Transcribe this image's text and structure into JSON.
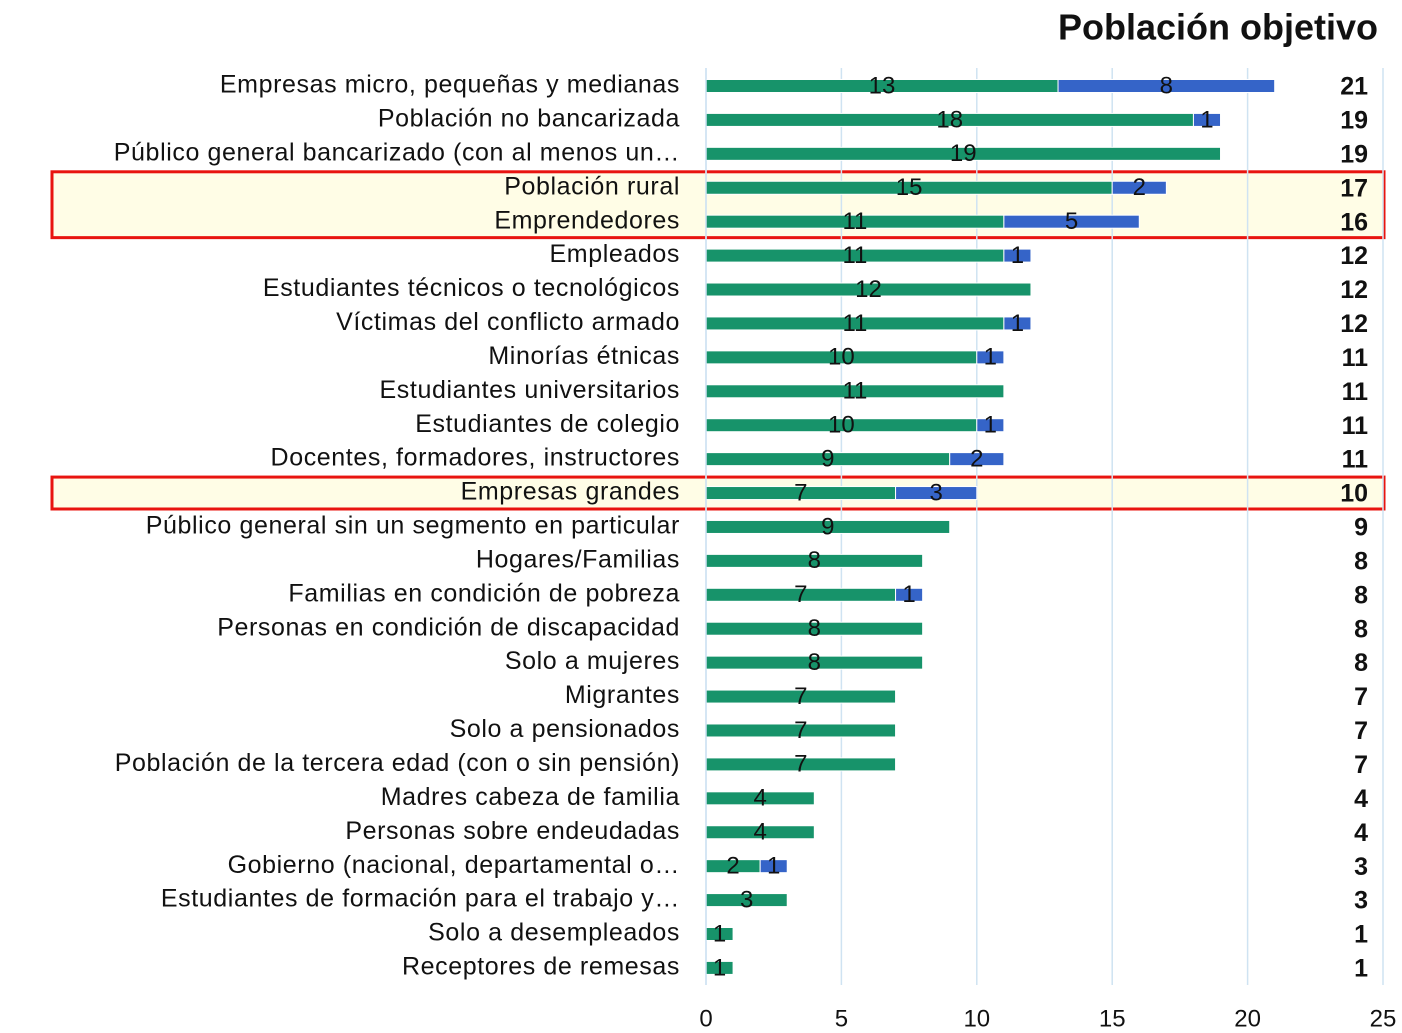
{
  "chart_data": {
    "type": "stacked-bar-horizontal",
    "title": "Población objetivo",
    "categories": [
      "Empresas micro, pequeñas y medianas",
      "Población no bancarizada",
      "Público general bancarizado (con al menos un…",
      "Población rural",
      "Emprendedores",
      "Empleados",
      "Estudiantes técnicos o tecnológicos",
      "Víctimas del conflicto armado",
      "Minorías étnicas",
      "Estudiantes universitarios",
      "Estudiantes de colegio",
      "Docentes, formadores, instructores",
      "Empresas grandes",
      "Público general sin un segmento en particular",
      "Hogares/Familias",
      "Familias en condición de pobreza",
      "Personas en condición de discapacidad",
      "Solo a mujeres",
      "Migrantes",
      "Solo a pensionados",
      "Población de la tercera edad (con o sin pensión)",
      "Madres cabeza de familia",
      "Personas sobre endeudadas",
      "Gobierno (nacional, departamental o…",
      "Estudiantes de formación para el trabajo y…",
      "Solo a desempleados",
      "Receptores de remesas"
    ],
    "series": [
      {
        "color": "#17936a",
        "values": [
          13,
          18,
          19,
          15,
          11,
          11,
          12,
          11,
          10,
          11,
          10,
          9,
          7,
          9,
          8,
          7,
          8,
          8,
          7,
          7,
          7,
          4,
          4,
          2,
          3,
          1,
          1
        ]
      },
      {
        "color": "#3564c8",
        "values": [
          8,
          1,
          null,
          2,
          5,
          1,
          null,
          1,
          1,
          null,
          1,
          2,
          3,
          null,
          null,
          1,
          null,
          null,
          null,
          null,
          null,
          null,
          null,
          1,
          null,
          null,
          null
        ]
      }
    ],
    "totals": [
      21,
      19,
      19,
      17,
      16,
      12,
      12,
      12,
      11,
      11,
      11,
      11,
      10,
      9,
      8,
      8,
      8,
      8,
      7,
      7,
      7,
      4,
      4,
      3,
      3,
      1,
      1
    ],
    "highlight": [
      3,
      4,
      12
    ],
    "xlim": [
      0,
      25
    ],
    "xticks": [
      0,
      5,
      10,
      15,
      20,
      25
    ],
    "grid": true
  }
}
